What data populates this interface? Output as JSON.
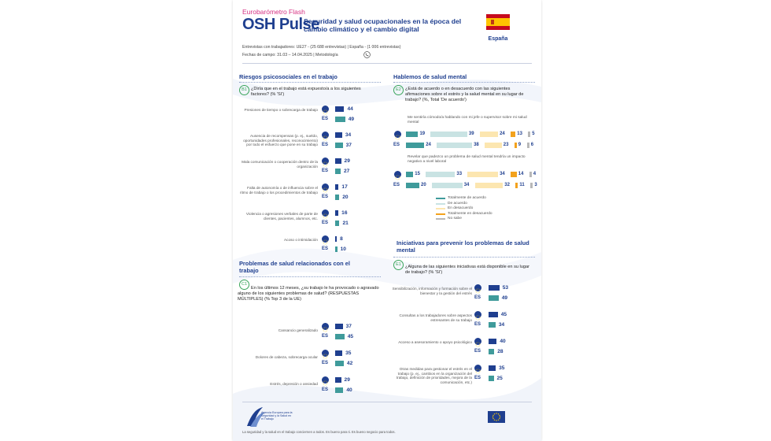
{
  "header": {
    "brand": "Eurobarómetro Flash",
    "title": "OSH Pulse",
    "subtitle": "Seguridad y salud ocupacionales en la época del cambio climático y el cambio digital",
    "country": "España",
    "meta_line1": "Entrevistas con trabajadores:  UE27 - (25 688 entrevistas)   | España - (1 006 entrevistas)",
    "meta_line2": "Fechas de campo: 31.03 – 14.04.2025  |  Metodología"
  },
  "colors": {
    "eu": "#1f3f8f",
    "es": "#3f9b9b",
    "strongly_agree": "#3f9b9b",
    "agree": "#c9e3e3",
    "disagree": "#fce6b0",
    "strongly_disagree": "#f3a21d",
    "dont_know": "#b8b8b8"
  },
  "sections": {
    "b1": {
      "title": "Riesgos psicosociales en el trabajo",
      "badge": "B1",
      "question": "¿Diría que en el trabajo está expuesto/a a los siguientes factores? (% 'Sí')"
    },
    "c1": {
      "title": "Problemas de salud relacionados con el trabajo",
      "badge": "C1",
      "question": "En los últimos 12 meses, ¿su trabajo le ha provocado o agravado alguno de los siguientes problemas de salud? (RESPUESTAS MÚLTIPLES) (% Top 3 de la UE)"
    },
    "e2": {
      "title": "Hablemos de salud mental",
      "badge": "E2",
      "question": "¿Está de acuerdo o en desacuerdo con las siguientes afirmaciones sobre el estrés y la salud mental en su lugar de trabajo? (%, Total 'De acuerdo')"
    },
    "e1": {
      "title": "Iniciativas para prevenir los problemas de salud mental",
      "badge": "E1",
      "question": "¿Alguna de las siguientes iniciativas está disponible en su lugar de trabajo? (% 'Sí')"
    }
  },
  "row_labels": {
    "es": "ES"
  },
  "chart_data": [
    {
      "type": "bar",
      "id": "b1",
      "categories": [
        "Presiones de tiempo o sobrecarga de trabajo",
        "Ausencia de recompensas (p. ej., sueldo, oportunidades profesionales, reconocimiento) por todo el esfuerzo que pone en su trabajo",
        "Mala comunicación o cooperación dentro de la organización",
        "Falta de autonomía o de influencia sobre el ritmo de trabajo o los procedimientos de trabajo",
        "Violencia o agresiones verbales de parte de clientes, pacientes, alumnos, etc.",
        "Acoso o intimidación"
      ],
      "series": [
        {
          "key": "eu",
          "values": [
            44,
            34,
            29,
            17,
            16,
            8
          ]
        },
        {
          "name": "ES",
          "key": "es",
          "values": [
            49,
            37,
            27,
            20,
            21,
            10
          ]
        }
      ]
    },
    {
      "type": "bar",
      "id": "c1",
      "categories": [
        "Cansancio generalizado",
        "Dolores de cabeza, sobrecarga ocular",
        "Estrés, depresión o ansiedad"
      ],
      "series": [
        {
          "key": "eu",
          "values": [
            37,
            35,
            29
          ]
        },
        {
          "name": "ES",
          "key": "es",
          "values": [
            45,
            42,
            40
          ]
        }
      ]
    },
    {
      "type": "bar",
      "id": "e1",
      "categories": [
        "Sensibilización, información y formación sobre el bienestar y la gestión del estrés",
        "Consultas a los trabajadores sobre aspectos estresantes de su trabajo",
        "Acceso a asesoramiento o apoyo psicológico",
        "Otras medidas para gestionar el estrés en el trabajo (p. ej., cambios en la organización del trabajo, definición de prioridades, mejora de la comunicación, etc.)"
      ],
      "series": [
        {
          "key": "eu",
          "values": [
            53,
            45,
            40,
            35
          ]
        },
        {
          "name": "ES",
          "key": "es",
          "values": [
            49,
            34,
            28,
            25
          ]
        }
      ]
    },
    {
      "type": "bar",
      "stacked": true,
      "id": "e2",
      "categories": [
        "Me sentiría cómodo/a hablando con mi jefe o supervisor sobre mi salud mental",
        "Revelar que padezco un problema de salud mental tendría un impacto negativo a nivel laboral"
      ],
      "legend": [
        "Totalmente de acuerdo",
        "De acuerdo",
        "En desacuerdo",
        "Totalmente en desacuerdo",
        "No sabe"
      ],
      "rows": [
        {
          "category": 0,
          "key": "eu",
          "values": [
            19,
            39,
            24,
            13,
            5
          ]
        },
        {
          "category": 0,
          "name": "ES",
          "key": "es",
          "values": [
            24,
            38,
            23,
            9,
            6
          ]
        },
        {
          "category": 1,
          "key": "eu",
          "values": [
            15,
            33,
            34,
            14,
            4
          ]
        },
        {
          "category": 1,
          "name": "ES",
          "key": "es",
          "values": [
            20,
            34,
            32,
            11,
            3
          ]
        }
      ]
    }
  ],
  "footer": {
    "agency": "Agencia Europea para la Seguridad y la Salud en el Trabajo",
    "note": "La seguridad y la salud en el trabajo conciernen a todos. Es bueno para ti. Es bueno negocio para todos."
  }
}
